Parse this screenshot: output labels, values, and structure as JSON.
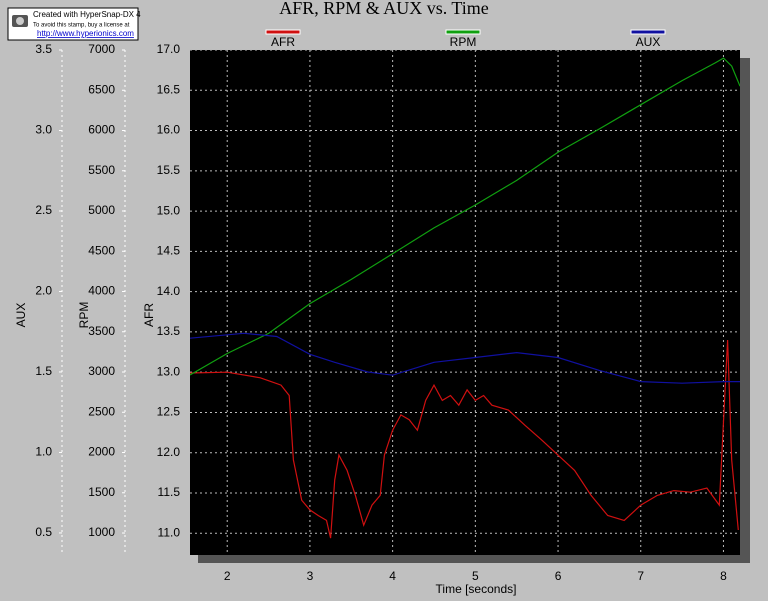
{
  "watermark": [
    "Created with HyperSnap-DX 4",
    "To avoid this stamp, buy a license at",
    "http://www.hyperionics.com"
  ],
  "chart_data": {
    "type": "line",
    "title": "AFR, RPM & AUX vs. Time",
    "xlabel": "Time [seconds]",
    "xlim": [
      1.55,
      8.2
    ],
    "xticks": [
      2,
      3,
      4,
      5,
      6,
      7,
      8
    ],
    "grid": true,
    "y_axes": [
      {
        "label": "AUX",
        "ylim": [
          0.363,
          3.5
        ],
        "yticks": [
          0.5,
          {
            "value": 1,
            "label": "1.0"
          },
          1.5,
          {
            "value": 2,
            "label": "2.0"
          },
          2.5,
          {
            "value": 3,
            "label": "3.0"
          },
          3.5
        ]
      },
      {
        "label": "RPM",
        "ylim": [
          727,
          7000
        ],
        "yticks": [
          1000,
          1500,
          2000,
          2500,
          3000,
          3500,
          4000,
          4500,
          5000,
          5500,
          6000,
          6500,
          7000
        ]
      },
      {
        "label": "AFR",
        "ylim": [
          10.73,
          17.0
        ],
        "yticks": [
          {
            "value": 11,
            "label": "11.0"
          },
          11.5,
          {
            "value": 12,
            "label": "12.0"
          },
          12.5,
          {
            "value": 13,
            "label": "13.0"
          },
          13.5,
          {
            "value": 14,
            "label": "14.0"
          },
          14.5,
          {
            "value": 15,
            "label": "15.0"
          },
          15.5,
          {
            "value": 16,
            "label": "16.0"
          },
          16.5,
          {
            "value": 17,
            "label": "17.0"
          }
        ]
      }
    ],
    "series": [
      {
        "name": "AFR",
        "color": "#d01010",
        "axis": 2,
        "x": [
          1.55,
          2.0,
          2.4,
          2.65,
          2.75,
          2.8,
          2.9,
          3.0,
          3.1,
          3.2,
          3.25,
          3.3,
          3.35,
          3.45,
          3.55,
          3.65,
          3.75,
          3.85,
          3.9,
          4.0,
          4.1,
          4.2,
          4.3,
          4.4,
          4.5,
          4.6,
          4.7,
          4.8,
          4.9,
          5.0,
          5.1,
          5.2,
          5.4,
          5.6,
          5.8,
          6.0,
          6.2,
          6.4,
          6.6,
          6.8,
          7.0,
          7.2,
          7.4,
          7.6,
          7.8,
          7.95,
          8.05,
          8.1,
          8.18
        ],
        "values": [
          12.99,
          13.0,
          12.93,
          12.84,
          12.71,
          11.91,
          11.41,
          11.29,
          11.22,
          11.16,
          10.94,
          11.66,
          11.97,
          11.78,
          11.47,
          11.1,
          11.35,
          11.47,
          11.97,
          12.28,
          12.47,
          12.41,
          12.28,
          12.65,
          12.84,
          12.65,
          12.71,
          12.59,
          12.78,
          12.65,
          12.71,
          12.59,
          12.53,
          12.34,
          12.16,
          11.97,
          11.78,
          11.47,
          11.22,
          11.16,
          11.35,
          11.47,
          11.53,
          11.51,
          11.56,
          11.35,
          13.4,
          11.91,
          11.04
        ]
      },
      {
        "name": "RPM",
        "color": "#10a010",
        "axis": 1,
        "x": [
          1.55,
          2.0,
          2.5,
          3.0,
          3.5,
          4.0,
          4.5,
          5.0,
          5.5,
          6.0,
          6.5,
          7.0,
          7.5,
          7.9,
          8.0,
          8.1,
          8.2
        ],
        "values": [
          2963,
          3230,
          3480,
          3850,
          4150,
          4470,
          4790,
          5075,
          5380,
          5730,
          6020,
          6320,
          6620,
          6840,
          6900,
          6800,
          6550
        ]
      },
      {
        "name": "AUX",
        "color": "#1010a0",
        "axis": 0,
        "x": [
          1.55,
          2.2,
          2.6,
          3.0,
          3.3,
          3.7,
          4.0,
          4.5,
          5.0,
          5.5,
          6.0,
          6.5,
          7.0,
          7.5,
          8.0,
          8.2
        ],
        "values": [
          1.71,
          1.74,
          1.72,
          1.61,
          1.56,
          1.5,
          1.48,
          1.56,
          1.59,
          1.62,
          1.59,
          1.51,
          1.44,
          1.43,
          1.44,
          1.44
        ]
      }
    ]
  }
}
